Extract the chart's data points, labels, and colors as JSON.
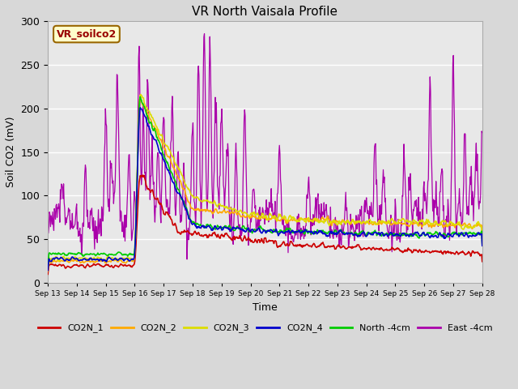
{
  "title": "VR North Vaisala Profile",
  "ylabel": "Soil CO2 (mV)",
  "xlabel": "Time",
  "ylim": [
    0,
    300
  ],
  "xtick_labels": [
    "Sep 13",
    "Sep 14",
    "Sep 15",
    "Sep 16",
    "Sep 17",
    "Sep 18",
    "Sep 19",
    "Sep 20",
    "Sep 21",
    "Sep 22",
    "Sep 23",
    "Sep 24",
    "Sep 25",
    "Sep 26",
    "Sep 27",
    "Sep 28"
  ],
  "fig_bg_color": "#d8d8d8",
  "plot_bg_color": "#e8e8e8",
  "annotation_text": "VR_soilco2",
  "annotation_bg": "#ffffcc",
  "annotation_border": "#cc0000",
  "series_colors": {
    "CO2N_1": "#cc0000",
    "CO2N_2": "#ffaa00",
    "CO2N_3": "#dddd00",
    "CO2N_4": "#0000cc",
    "North_4cm": "#00cc00",
    "East_4cm": "#aa00aa"
  },
  "yticks": [
    0,
    50,
    100,
    150,
    200,
    250,
    300
  ]
}
